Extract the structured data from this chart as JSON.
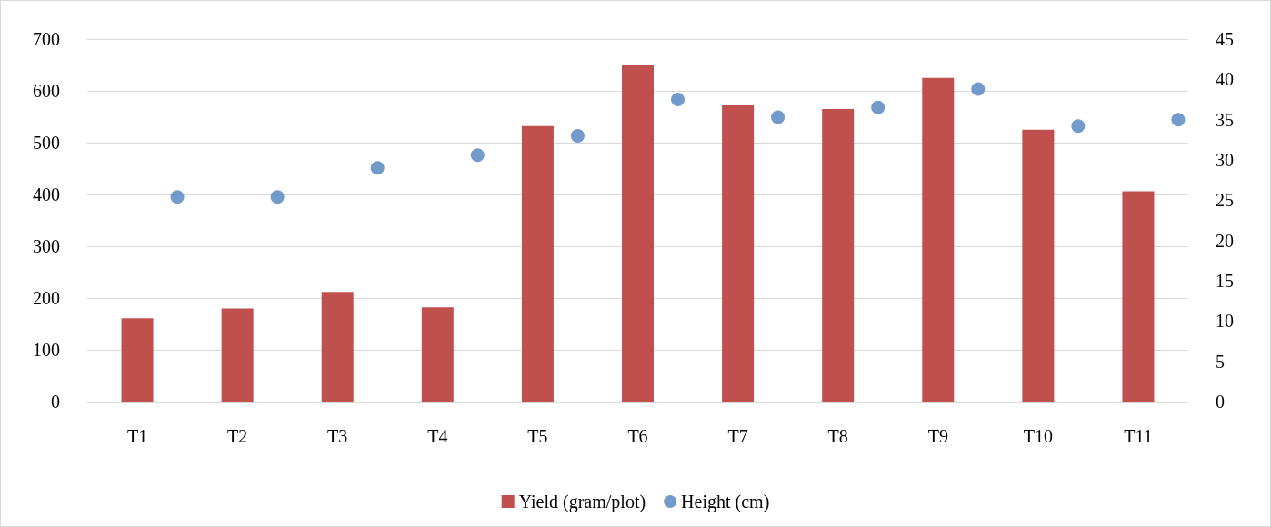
{
  "chart_data": {
    "type": "bar",
    "categories": [
      "T1",
      "T2",
      "T3",
      "T4",
      "T5",
      "T6",
      "T7",
      "T8",
      "T9",
      "T10",
      "T11"
    ],
    "series": [
      {
        "name": "Yield (gram/plot)",
        "color": "#c0504d",
        "values": [
          161,
          180,
          212,
          182,
          532,
          649,
          572,
          565,
          625,
          525,
          406
        ]
      },
      {
        "name": "Height (cm)",
        "type": "scatter",
        "axis": "y2",
        "color": "#4f81bd",
        "marker": "circle",
        "values": [
          25.4,
          25.4,
          29.0,
          30.6,
          33.0,
          37.5,
          35.3,
          36.5,
          38.8,
          34.2,
          35.0
        ]
      }
    ],
    "ylim": [
      0,
      700
    ],
    "yticks": [
      0,
      100,
      200,
      300,
      400,
      500,
      600,
      700
    ],
    "y2lim": [
      0,
      45
    ],
    "y2ticks": [
      0,
      5,
      10,
      15,
      20,
      25,
      30,
      35,
      40,
      45
    ],
    "grid": "y",
    "legend": "bottom"
  }
}
